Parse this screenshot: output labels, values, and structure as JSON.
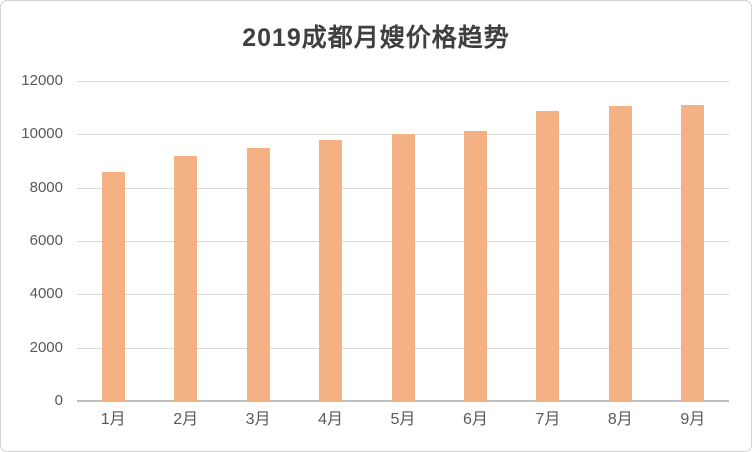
{
  "chart_data": {
    "type": "bar",
    "title": "2019成都月嫂价格趋势",
    "categories": [
      "1月",
      "2月",
      "3月",
      "4月",
      "5月",
      "6月",
      "7月",
      "8月",
      "9月"
    ],
    "values": [
      8600,
      9180,
      9480,
      9780,
      10000,
      10110,
      10870,
      11060,
      11090
    ],
    "xlabel": "",
    "ylabel": "",
    "ylim": [
      0,
      12000
    ],
    "yticks": [
      0,
      2000,
      4000,
      6000,
      8000,
      10000,
      12000
    ],
    "grid": true,
    "legend_position": "none",
    "colors": {
      "bar_fill": "#F4B183",
      "gridline": "#D9D9D9",
      "axis_line": "#BFBFBF",
      "tick_text": "#595959",
      "title_text": "#3F3F3F",
      "frame_border": "#D2D2D2",
      "background": "#FFFFFF"
    }
  }
}
